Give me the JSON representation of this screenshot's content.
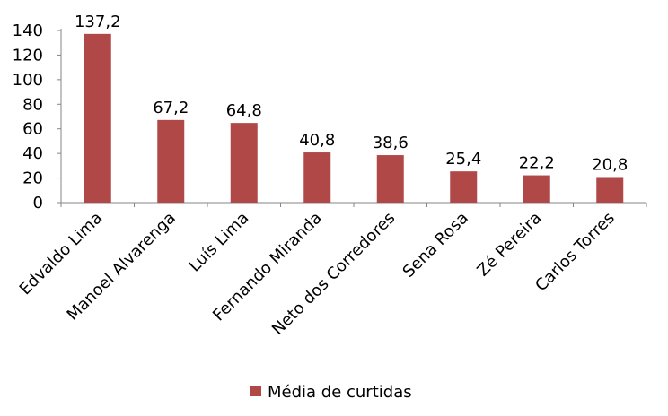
{
  "chart_data": {
    "type": "bar",
    "categories": [
      "Edvaldo Lima",
      "Manoel Alvarenga",
      "Luís Lima",
      "Fernando Miranda",
      "Neto dos Corredores",
      "Sena Rosa",
      "Zé Pereira",
      "Carlos Torres"
    ],
    "series": [
      {
        "name": "Média de curtidas",
        "values": [
          137.2,
          67.2,
          64.8,
          40.8,
          38.6,
          25.4,
          22.2,
          20.8
        ],
        "value_labels": [
          "137,2",
          "67,2",
          "64,8",
          "40,8",
          "38,6",
          "25,4",
          "22,2",
          "20,8"
        ],
        "color": "#b04848"
      }
    ],
    "title": "",
    "xlabel": "",
    "ylabel": "",
    "ylim": [
      0,
      140
    ],
    "yticks": [
      0,
      20,
      40,
      60,
      80,
      100,
      120,
      140
    ],
    "grid": false,
    "legend": "bottom"
  }
}
